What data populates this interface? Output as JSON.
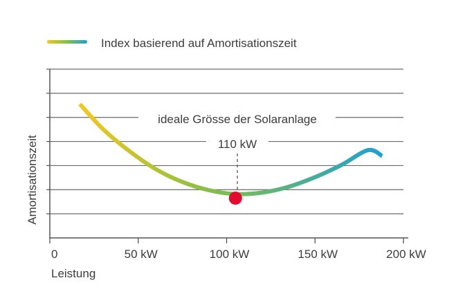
{
  "chart_data": {
    "type": "line",
    "title": "",
    "legend": {
      "position": "top-left",
      "entries": [
        "Index basierend auf Amortisationszeit"
      ]
    },
    "xlabel": "Leistung",
    "ylabel": "Amortisationszeit",
    "xlim": [
      0,
      200
    ],
    "x_ticks": [
      0,
      50,
      100,
      150,
      200
    ],
    "x_tick_labels": [
      "0",
      "50 kW",
      "100 kW",
      "150 kW",
      "200 kW"
    ],
    "y_ticks": [
      0,
      1,
      2,
      3,
      4,
      5,
      6,
      7
    ],
    "y_tick_labels_shown": false,
    "ylim": [
      0,
      7
    ],
    "grid": "horizontal",
    "series": [
      {
        "name": "Index basierend auf Amortisationszeit",
        "gradient_colors": [
          "#f2c81c",
          "#7fbf4a",
          "#1ea0d6"
        ],
        "x": [
          17,
          30,
          45,
          60,
          75,
          90,
          105,
          120,
          135,
          150,
          165,
          180,
          188
        ],
        "y": [
          5.55,
          4.52,
          3.6,
          2.85,
          2.32,
          1.98,
          1.82,
          1.88,
          2.12,
          2.52,
          3.03,
          3.64,
          3.4
        ]
      }
    ],
    "annotations": [
      {
        "text": "ideale Grösse der Solaranlage",
        "x": 105,
        "y": 5.15
      },
      {
        "text": "110 kW",
        "x": 105,
        "y": 4.05
      }
    ],
    "highlight_point": {
      "x": 105,
      "y": 1.65,
      "color": "#e30b2f"
    }
  }
}
